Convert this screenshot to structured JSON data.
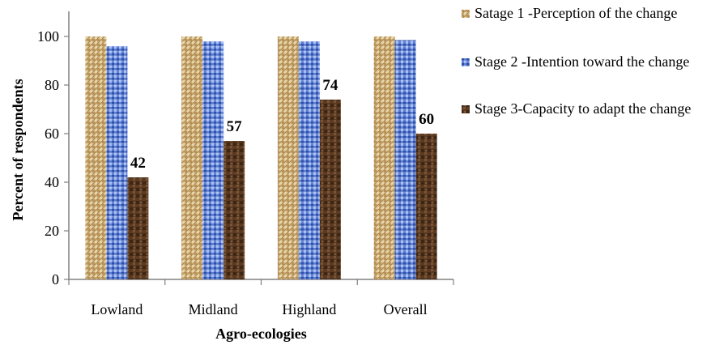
{
  "chart_data": {
    "type": "bar",
    "title": "",
    "xlabel": "Agro-ecologies",
    "ylabel": "Percent of respondents",
    "categories": [
      "Lowland",
      "Midland",
      "Highland",
      "Overall"
    ],
    "ylim": [
      0,
      100
    ],
    "yticks": [
      0,
      20,
      40,
      60,
      80,
      100
    ],
    "grid": false,
    "legend_position": "right",
    "series": [
      {
        "name": "Satage 1 -Perception of the change",
        "values": [
          100,
          100,
          100,
          100
        ],
        "color": "#c9a86a"
      },
      {
        "name": "Stage 2 -Intention toward the change",
        "values": [
          96,
          98,
          98,
          98.5
        ],
        "color": "#4f6fc4"
      },
      {
        "name": "Stage 3-Capacity to adapt the change",
        "values": [
          42,
          57,
          74,
          60
        ],
        "color": "#5a3a22"
      }
    ],
    "data_labels": {
      "series_index": 2,
      "labels": [
        "42",
        "57",
        "74",
        "60"
      ]
    }
  }
}
